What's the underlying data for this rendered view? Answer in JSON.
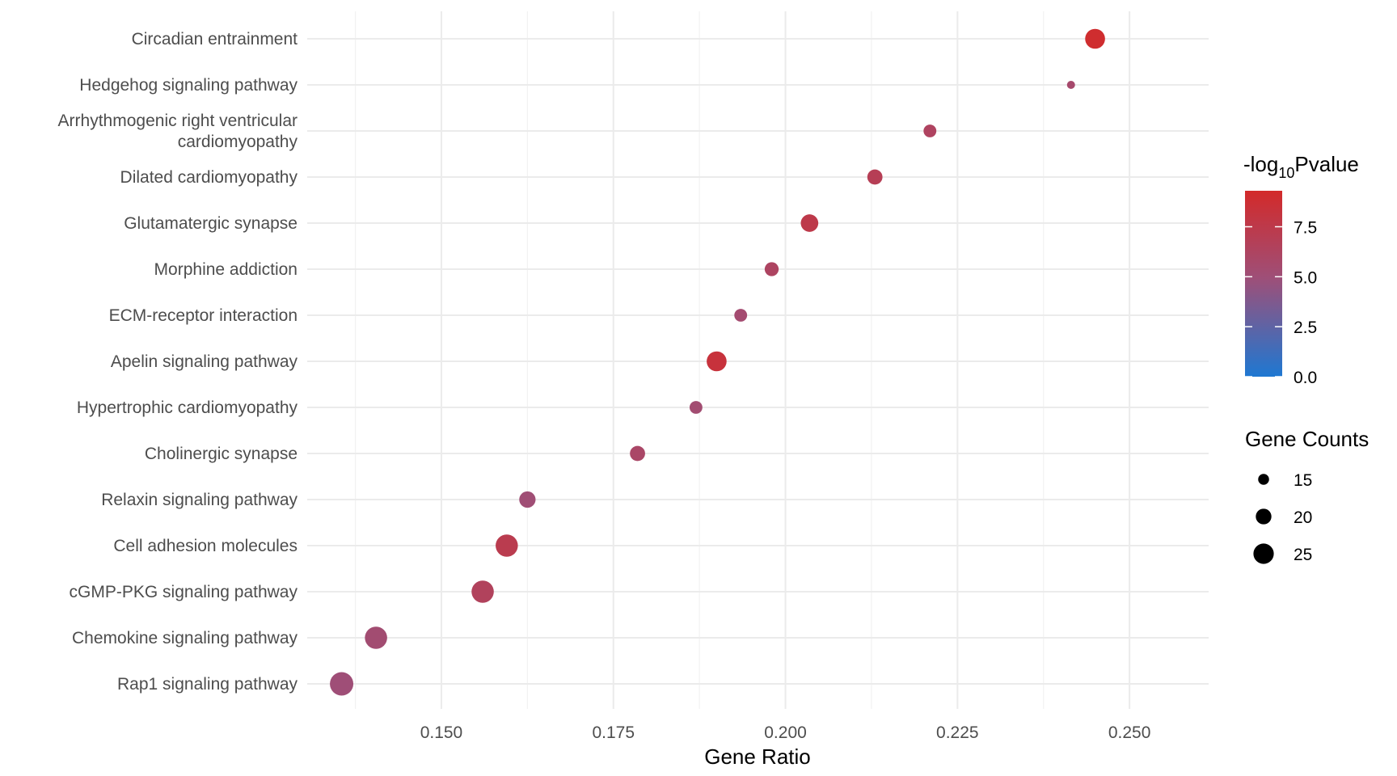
{
  "chart_data": {
    "type": "scatter",
    "title": "",
    "xlabel": "Gene Ratio",
    "ylabel": "",
    "xlim": [
      0.1305,
      0.2615
    ],
    "xticks": [
      0.15,
      0.175,
      0.2,
      0.225,
      0.25
    ],
    "xtick_labels": [
      "0.150",
      "0.175",
      "0.200",
      "0.225",
      "0.250"
    ],
    "grid": true,
    "categories": [
      "Circadian entrainment",
      "Hedgehog signaling pathway",
      "Arrhythmogenic right ventricular cardiomyopathy",
      "Dilated cardiomyopathy",
      "Glutamatergic synapse",
      "Morphine addiction",
      "ECM-receptor interaction",
      "Apelin signaling pathway",
      "Hypertrophic cardiomyopathy",
      "Cholinergic synapse",
      "Relaxin signaling pathway",
      "Cell adhesion molecules",
      "cGMP-PKG signaling pathway",
      "Chemokine signaling pathway",
      "Rap1 signaling pathway"
    ],
    "category_label_lines": [
      [
        "Circadian entrainment"
      ],
      [
        "Hedgehog signaling pathway"
      ],
      [
        "Arrhythmogenic right ventricular",
        "cardiomyopathy"
      ],
      [
        "Dilated cardiomyopathy"
      ],
      [
        "Glutamatergic synapse"
      ],
      [
        "Morphine addiction"
      ],
      [
        "ECM-receptor interaction"
      ],
      [
        "Apelin signaling pathway"
      ],
      [
        "Hypertrophic cardiomyopathy"
      ],
      [
        "Cholinergic synapse"
      ],
      [
        "Relaxin signaling pathway"
      ],
      [
        "Cell adhesion molecules"
      ],
      [
        "cGMP-PKG signaling pathway"
      ],
      [
        "Chemokine signaling pathway"
      ],
      [
        "Rap1 signaling pathway"
      ]
    ],
    "points": [
      {
        "category": "Circadian entrainment",
        "gene_ratio": 0.245,
        "gene_counts": 22,
        "neg_log10_p": 9.0
      },
      {
        "category": "Hedgehog signaling pathway",
        "gene_ratio": 0.2415,
        "gene_counts": 12,
        "neg_log10_p": 5.6
      },
      {
        "category": "Arrhythmogenic right ventricular cardiomyopathy",
        "gene_ratio": 0.221,
        "gene_counts": 16,
        "neg_log10_p": 6.3
      },
      {
        "category": "Dilated cardiomyopathy",
        "gene_ratio": 0.213,
        "gene_counts": 18,
        "neg_log10_p": 6.9
      },
      {
        "category": "Glutamatergic synapse",
        "gene_ratio": 0.2035,
        "gene_counts": 20,
        "neg_log10_p": 7.5
      },
      {
        "category": "Morphine addiction",
        "gene_ratio": 0.198,
        "gene_counts": 17,
        "neg_log10_p": 6.2
      },
      {
        "category": "ECM-receptor interaction",
        "gene_ratio": 0.1935,
        "gene_counts": 16,
        "neg_log10_p": 5.4
      },
      {
        "category": "Apelin signaling pathway",
        "gene_ratio": 0.19,
        "gene_counts": 22,
        "neg_log10_p": 8.3
      },
      {
        "category": "Hypertrophic cardiomyopathy",
        "gene_ratio": 0.187,
        "gene_counts": 16,
        "neg_log10_p": 5.3
      },
      {
        "category": "Cholinergic synapse",
        "gene_ratio": 0.1785,
        "gene_counts": 18,
        "neg_log10_p": 5.9
      },
      {
        "category": "Relaxin signaling pathway",
        "gene_ratio": 0.1625,
        "gene_counts": 19,
        "neg_log10_p": 5.1
      },
      {
        "category": "Cell adhesion molecules",
        "gene_ratio": 0.1595,
        "gene_counts": 24,
        "neg_log10_p": 7.2
      },
      {
        "category": "cGMP-PKG signaling pathway",
        "gene_ratio": 0.156,
        "gene_counts": 24,
        "neg_log10_p": 6.5
      },
      {
        "category": "Chemokine signaling pathway",
        "gene_ratio": 0.1405,
        "gene_counts": 24,
        "neg_log10_p": 5.3
      },
      {
        "category": "Rap1 signaling pathway",
        "gene_ratio": 0.1355,
        "gene_counts": 25,
        "neg_log10_p": 5.0
      }
    ],
    "color_legend": {
      "title_prefix": "-log",
      "title_subscript": "10",
      "title_suffix": "Pvalue",
      "range": [
        0.0,
        9.3
      ],
      "ticks": [
        0.0,
        2.5,
        5.0,
        7.5
      ],
      "tick_labels": [
        "0.0",
        "2.5",
        "5.0",
        "7.5"
      ],
      "low_color": "#1e78d2",
      "mid_color": "#9e4f78",
      "high_color": "#d32a2a"
    },
    "size_legend": {
      "title": "Gene Counts",
      "values": [
        15,
        20,
        25
      ],
      "labels": [
        "15",
        "20",
        "25"
      ],
      "color": "#000000"
    },
    "size_domain": [
      12,
      25
    ],
    "legend_position": "right"
  }
}
